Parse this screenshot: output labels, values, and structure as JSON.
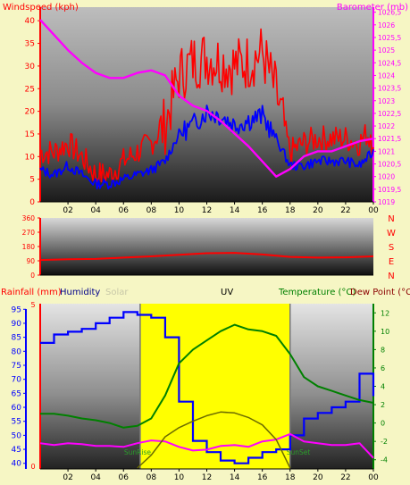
{
  "colors": {
    "red": "#ff0000",
    "blue": "#0000ff",
    "magenta": "#ff00ff",
    "green": "#008000",
    "olive": "#6b6b00",
    "yellow": "#ffff00",
    "plot_bg": "#5a5a5a"
  },
  "chart_data": [
    {
      "type": "line",
      "title": "",
      "ylabel_left": "Windspeed (kph)",
      "ylabel_right": "Barometer (mb)",
      "top_label_faint": "",
      "ylim_left": [
        0,
        43
      ],
      "ylim_right": [
        1019,
        1026.7
      ],
      "yticks_left": [
        "0",
        "5",
        "10",
        "15",
        "20",
        "25",
        "30",
        "35",
        "40"
      ],
      "yticks_right": [
        "1019",
        "1019,5",
        "1020",
        "1020,5",
        "1021",
        "1021,5",
        "1022",
        "1022,5",
        "1023",
        "1023,5",
        "1024",
        "1024,5",
        "1025",
        "1025,5",
        "1026",
        "1026,5"
      ],
      "x_hours": [
        0,
        1,
        2,
        3,
        4,
        5,
        6,
        7,
        8,
        9,
        10,
        11,
        12,
        13,
        14,
        15,
        16,
        17,
        18,
        19,
        20,
        21,
        22,
        23,
        24
      ],
      "xticks": [
        "02",
        "04",
        "06",
        "08",
        "10",
        "12",
        "14",
        "16",
        "18",
        "20",
        "22",
        "00"
      ],
      "series": [
        {
          "key": "gust",
          "color": "red",
          "y": [
            11,
            11,
            13,
            10,
            6,
            6,
            9,
            11,
            13,
            17,
            28,
            31,
            32,
            31,
            30,
            31,
            33,
            24,
            11,
            13,
            14,
            14,
            14,
            13,
            17
          ]
        },
        {
          "key": "speed",
          "color": "blue",
          "y": [
            7,
            6,
            8,
            6,
            4,
            4,
            5,
            6,
            7,
            9,
            15,
            17,
            20,
            19,
            17,
            18,
            19,
            14,
            8,
            8,
            9,
            9,
            9,
            8,
            11
          ]
        },
        {
          "key": "baro",
          "color": "magenta",
          "axis": "right",
          "y": [
            1026.2,
            1025.6,
            1025.0,
            1024.5,
            1024.1,
            1023.9,
            1023.9,
            1024.1,
            1024.2,
            1024.0,
            1023.2,
            1022.8,
            1022.6,
            1022.2,
            1021.7,
            1021.2,
            1020.6,
            1020.0,
            1020.3,
            1020.8,
            1021.0,
            1021.0,
            1021.2,
            1021.4,
            1021.5
          ]
        }
      ]
    },
    {
      "type": "line",
      "title": "",
      "ylim": [
        0,
        360
      ],
      "yticks": [
        "0",
        "90",
        "180",
        "270",
        "360"
      ],
      "compass": [
        "N",
        "W",
        "S",
        "E",
        "N"
      ],
      "x_hours": [
        0,
        2,
        4,
        6,
        8,
        10,
        12,
        14,
        16,
        18,
        20,
        22,
        24
      ],
      "series": [
        {
          "key": "direction",
          "color": "red",
          "y": [
            95,
            100,
            102,
            110,
            118,
            128,
            138,
            140,
            130,
            115,
            110,
            112,
            118
          ]
        }
      ]
    },
    {
      "type": "line",
      "title": "UV",
      "ylabel_left_rain": "Rainfall (mm)",
      "ylabel_humidity": "Humidity",
      "ylabel_solar": "Solar",
      "ylabel_temp": "Temperature (°C)",
      "ylabel_dew": "Dew Point (°C",
      "sunrise_label": "SunRise",
      "sunset_label": "SunSet",
      "rain_tick_top": "5",
      "rain_tick_bottom": "0",
      "ylim_humidity": [
        38,
        97
      ],
      "ylim_temp": [
        -5,
        13
      ],
      "yticks_left": [
        "40",
        "45",
        "50",
        "55",
        "60",
        "65",
        "70",
        "75",
        "80",
        "85",
        "90",
        "95"
      ],
      "yticks_right": [
        "-4",
        "-2",
        "0",
        "2",
        "4",
        "6",
        "8",
        "10",
        "12"
      ],
      "xticks": [
        "02",
        "04",
        "06",
        "08",
        "10",
        "12",
        "14",
        "16",
        "18",
        "20",
        "22",
        "00"
      ],
      "sunrise_hour": 7.2,
      "sunset_hour": 18.0,
      "x_hours": [
        0,
        1,
        2,
        3,
        4,
        5,
        6,
        7,
        8,
        9,
        10,
        11,
        12,
        13,
        14,
        15,
        16,
        17,
        18,
        19,
        20,
        21,
        22,
        23,
        24
      ],
      "series": [
        {
          "key": "humidity",
          "color": "blue",
          "axis": "left",
          "y": [
            83,
            86,
            87,
            88,
            90,
            92,
            94,
            93,
            92,
            85,
            62,
            48,
            44,
            41,
            40,
            42,
            44,
            45,
            50,
            56,
            58,
            60,
            62,
            72,
            64
          ]
        },
        {
          "key": "temperature",
          "color": "green",
          "axis": "right",
          "y": [
            1.0,
            1.0,
            0.8,
            0.5,
            0.3,
            0.0,
            -0.5,
            -0.3,
            0.5,
            3.0,
            6.5,
            8.0,
            9.0,
            10.0,
            10.7,
            10.2,
            10.0,
            9.5,
            7.5,
            5.0,
            4.0,
            3.5,
            3.0,
            2.5,
            2.2
          ]
        },
        {
          "key": "dew",
          "color": "magenta",
          "axis": "right",
          "y": [
            -2.2,
            -2.4,
            -2.2,
            -2.3,
            -2.5,
            -2.5,
            -2.6,
            -2.2,
            -1.9,
            -2.0,
            -2.6,
            -3.0,
            -2.9,
            -2.5,
            -2.4,
            -2.6,
            -2.0,
            -1.8,
            -1.2,
            -2.0,
            -2.2,
            -2.4,
            -2.4,
            -2.2,
            -3.8
          ]
        },
        {
          "key": "solar",
          "color": "olive",
          "axis": "right",
          "y": [
            null,
            null,
            null,
            null,
            null,
            null,
            null,
            -4.9,
            -3.5,
            -1.5,
            -0.5,
            0.2,
            0.8,
            1.2,
            1.1,
            0.6,
            -0.2,
            -1.8,
            -4.9,
            null,
            null,
            null,
            null,
            null,
            null
          ]
        }
      ]
    }
  ]
}
